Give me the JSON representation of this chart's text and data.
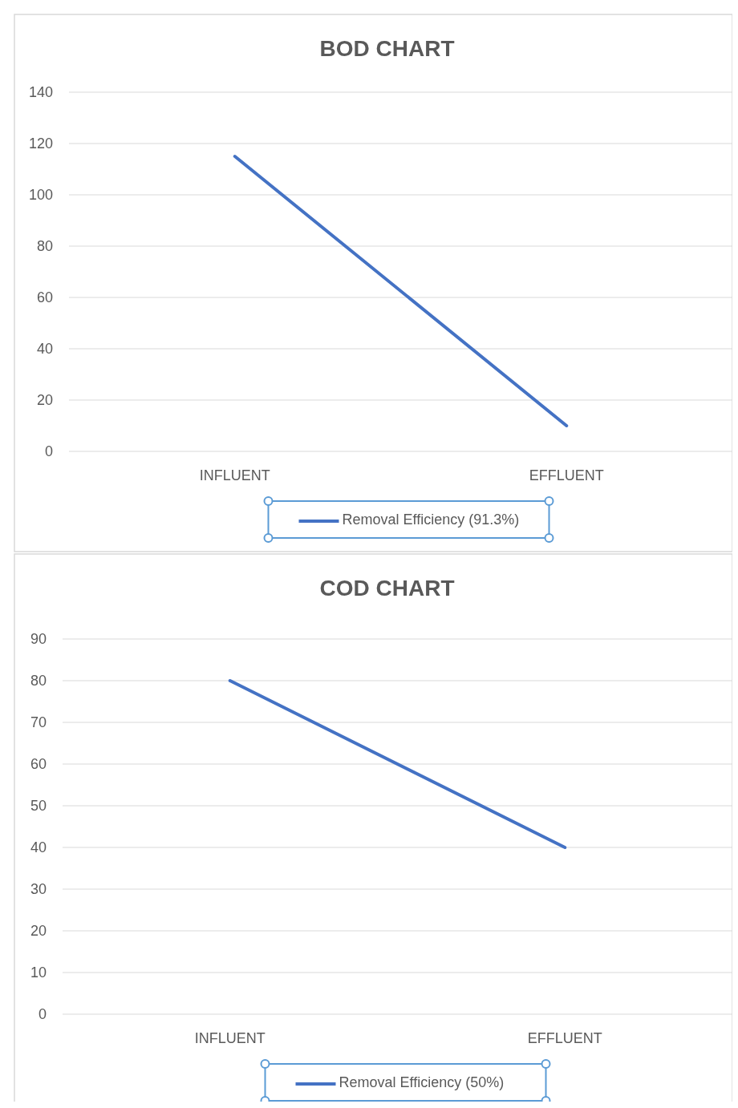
{
  "chart_data": [
    {
      "type": "line",
      "title": "BOD CHART",
      "categories": [
        "INFLUENT",
        "EFFLUENT"
      ],
      "series": [
        {
          "name": "Removal Efficiency (91.3%)",
          "color": "#4472c4",
          "values": [
            115,
            10
          ]
        }
      ],
      "ylim": [
        0,
        140
      ],
      "yticks": [
        0,
        20,
        40,
        60,
        80,
        100,
        120,
        140
      ],
      "grid": "y",
      "legend": "bottom",
      "marker": "none"
    },
    {
      "type": "line",
      "title": "COD CHART",
      "categories": [
        "INFLUENT",
        "EFFLUENT"
      ],
      "series": [
        {
          "name": "Removal Efficiency (50%)",
          "color": "#4472c4",
          "values": [
            80,
            40
          ]
        }
      ],
      "ylim": [
        0,
        90
      ],
      "yticks": [
        0,
        10,
        20,
        30,
        40,
        50,
        60,
        70,
        80,
        90
      ],
      "grid": "y",
      "legend": "bottom",
      "marker": "none"
    }
  ]
}
